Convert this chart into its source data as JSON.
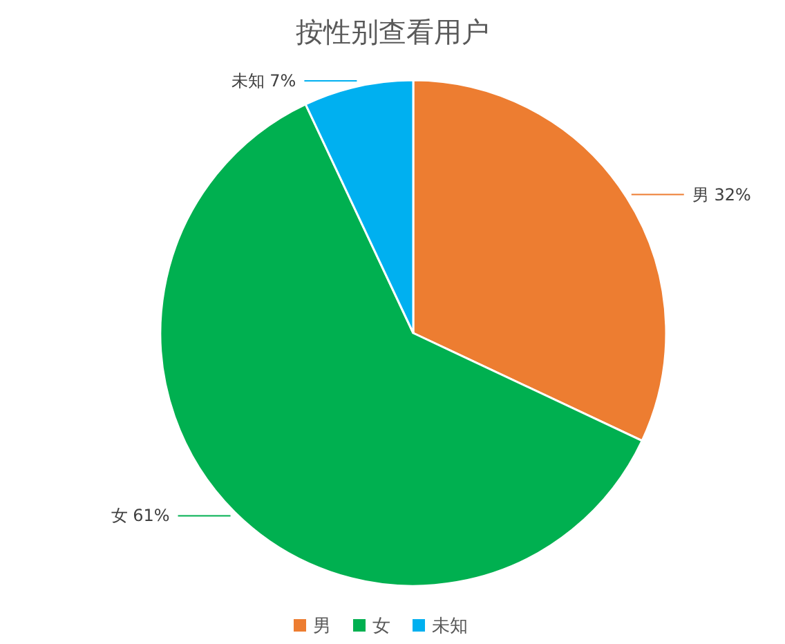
{
  "chart_data": {
    "type": "pie",
    "title": "按性别查看用户",
    "categories": [
      "男",
      "女",
      "未知"
    ],
    "values": [
      32,
      61,
      7
    ],
    "colors": [
      "#ed7d31",
      "#00b050",
      "#00b0f0"
    ],
    "value_labels": [
      "男 32%",
      "女 61%",
      "未知 7%"
    ],
    "legend": "bottom"
  }
}
